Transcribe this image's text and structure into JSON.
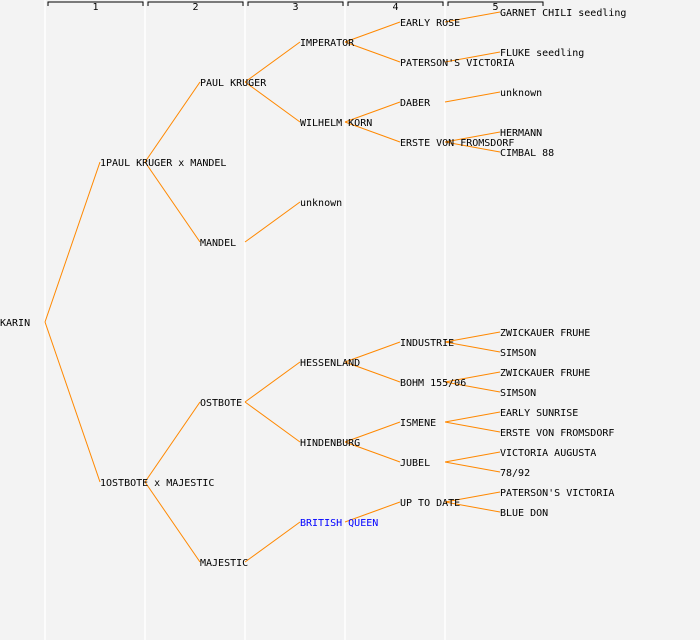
{
  "colors": {
    "background": "#f3f3f3",
    "line": "#ff8800",
    "text": "#000000",
    "highlight": "#0000ff",
    "guide": "#ffffff"
  },
  "generation_headers": [
    "1",
    "2",
    "3",
    "4",
    "5"
  ],
  "pedigree": {
    "name": "KARIN",
    "children": [
      {
        "name": "1PAUL KRUGER x MANDEL",
        "children": [
          {
            "name": "PAUL KRUGER",
            "children": [
              {
                "name": "IMPERATOR",
                "children": [
                  {
                    "name": "EARLY ROSE",
                    "children": [
                      {
                        "name": "GARNET CHILI seedling"
                      }
                    ]
                  },
                  {
                    "name": "PATERSON'S VICTORIA",
                    "children": [
                      {
                        "name": "FLUKE seedling"
                      }
                    ]
                  }
                ]
              },
              {
                "name": "WILHELM KORN",
                "children": [
                  {
                    "name": "DABER",
                    "children": [
                      {
                        "name": "unknown"
                      }
                    ]
                  },
                  {
                    "name": "ERSTE VON FROMSDORF",
                    "children": [
                      {
                        "name": "HERMANN"
                      },
                      {
                        "name": "CIMBAL 88"
                      }
                    ]
                  }
                ]
              }
            ]
          },
          {
            "name": "MANDEL",
            "children": [
              {
                "name": "unknown"
              }
            ]
          }
        ]
      },
      {
        "name": "1OSTBOTE x MAJESTIC",
        "children": [
          {
            "name": "OSTBOTE",
            "children": [
              {
                "name": "HESSENLAND",
                "children": [
                  {
                    "name": "INDUSTRIE",
                    "children": [
                      {
                        "name": "ZWICKAUER FRUHE"
                      },
                      {
                        "name": "SIMSON"
                      }
                    ]
                  },
                  {
                    "name": "BOHM 155/06",
                    "children": [
                      {
                        "name": "ZWICKAUER FRUHE"
                      },
                      {
                        "name": "SIMSON"
                      }
                    ]
                  }
                ]
              },
              {
                "name": "HINDENBURG",
                "children": [
                  {
                    "name": "ISMENE",
                    "children": [
                      {
                        "name": "EARLY SUNRISE"
                      },
                      {
                        "name": "ERSTE VON FROMSDORF"
                      }
                    ]
                  },
                  {
                    "name": "JUBEL",
                    "children": [
                      {
                        "name": "VICTORIA AUGUSTA"
                      },
                      {
                        "name": "78/92"
                      }
                    ]
                  }
                ]
              }
            ]
          },
          {
            "name": "MAJESTIC",
            "children": [
              {
                "name": "BRITISH QUEEN",
                "highlight": true,
                "children": [
                  {
                    "name": "UP TO DATE",
                    "children": [
                      {
                        "name": "PATERSON'S VICTORIA"
                      },
                      {
                        "name": "BLUE DON"
                      }
                    ]
                  }
                ]
              }
            ]
          }
        ]
      }
    ]
  }
}
